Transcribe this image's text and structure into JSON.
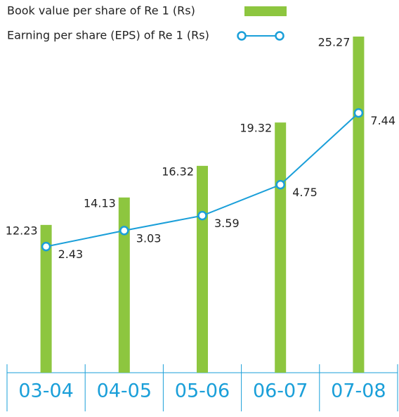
{
  "chart_data": {
    "type": "bar-line",
    "categories": [
      "03-04",
      "04-05",
      "05-06",
      "06-07",
      "07-08"
    ],
    "series": [
      {
        "name": "Book value per share of Re 1 (Rs)",
        "type": "bar",
        "color": "#8dc63f",
        "values": [
          12.23,
          14.13,
          16.32,
          19.32,
          25.27
        ]
      },
      {
        "name": "Earning per share (EPS) of Re 1 (Rs)",
        "type": "line",
        "axis": "y2",
        "color": "#1a9fd9",
        "values": [
          2.43,
          3.03,
          3.59,
          4.75,
          7.44
        ]
      }
    ],
    "ylim": [
      2,
      26
    ],
    "y2lim": [
      -2.3,
      10.7
    ],
    "legend": "top-left"
  }
}
